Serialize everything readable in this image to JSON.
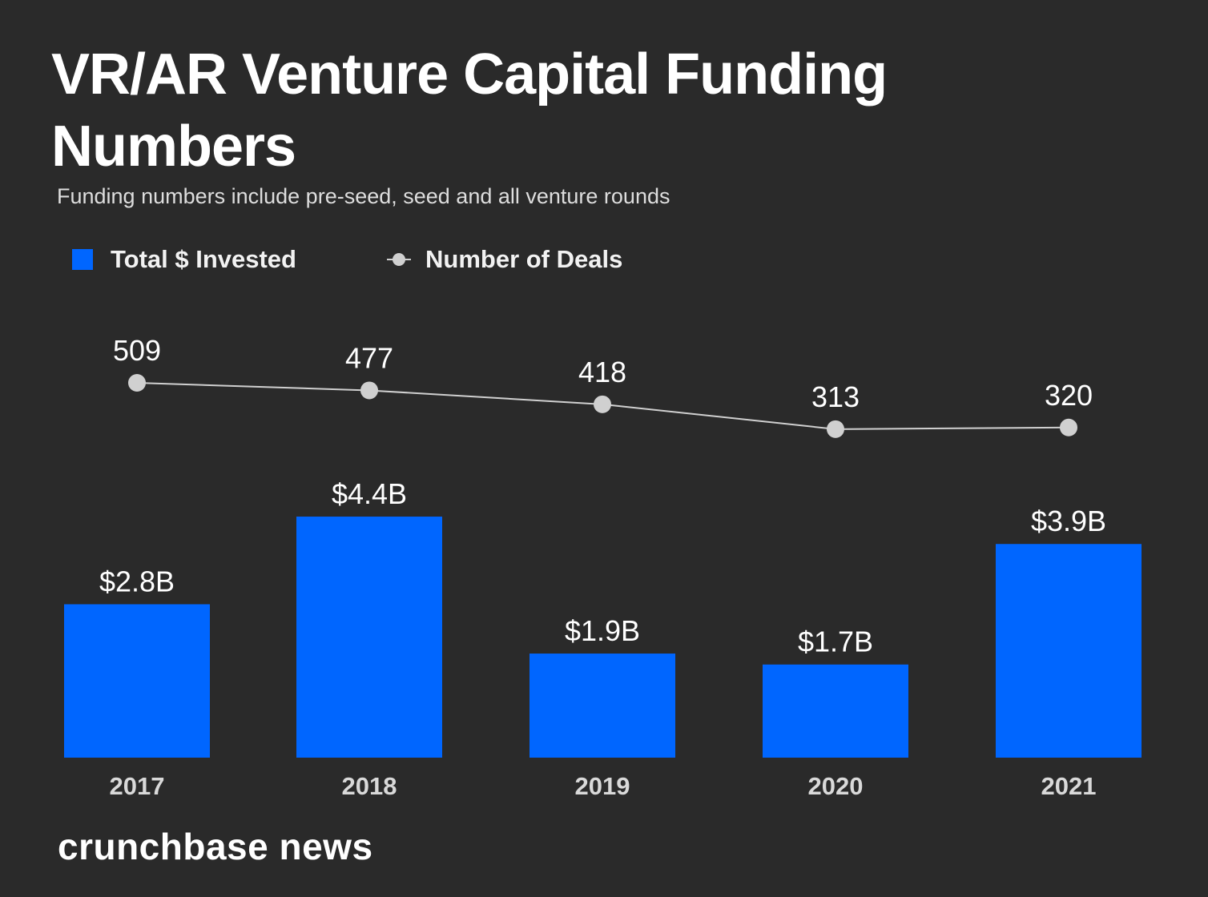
{
  "title": "VR/AR Venture Capital Funding Numbers",
  "subtitle": "Funding numbers include pre-seed, seed and all venture rounds",
  "legend": {
    "bars_label": "Total $ Invested",
    "line_label": "Number of Deals"
  },
  "colors": {
    "background": "#2a2a2a",
    "bar": "#0066ff",
    "line": "#d0d0d0",
    "text": "#ffffff",
    "tick_text": "#d9d9d9"
  },
  "chart_data": {
    "type": "bar",
    "categories": [
      "2017",
      "2018",
      "2019",
      "2020",
      "2021"
    ],
    "series": [
      {
        "name": "Total $ Invested",
        "type": "bar",
        "values": [
          2.8,
          4.4,
          1.9,
          1.7,
          3.9
        ],
        "labels": [
          "$2.8B",
          "$4.4B",
          "$1.9B",
          "$1.7B",
          "$3.9B"
        ]
      },
      {
        "name": "Number of Deals",
        "type": "line",
        "values": [
          509,
          477,
          418,
          313,
          320
        ],
        "labels": [
          "509",
          "477",
          "418",
          "313",
          "320"
        ]
      }
    ],
    "grid": false,
    "legend_position": "top-left"
  },
  "brand": "crunchbase news"
}
